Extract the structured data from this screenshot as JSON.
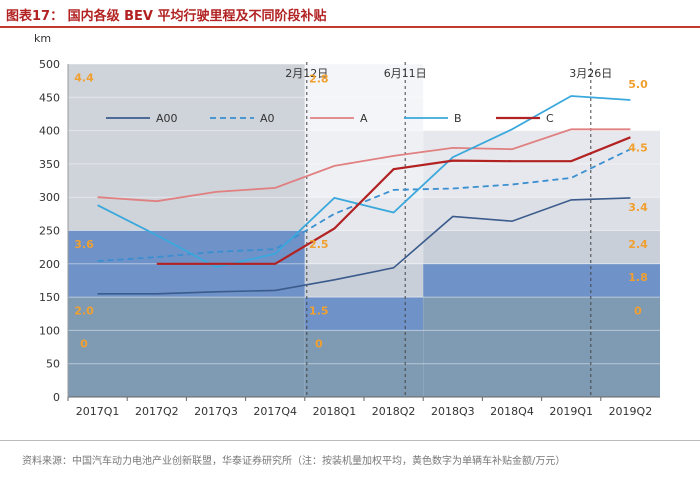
{
  "title": "图表17：  国内各级 BEV 平均行驶里程及不同阶段补贴",
  "source": "资料来源：中国汽车动力电池产业创新联盟，华泰证券研究所（注：按装机量加权平均，黄色数字为单辆车补贴金额/万元）",
  "chart_data": {
    "type": "line",
    "title": "国内各级 BEV 平均行驶里程及不同阶段补贴",
    "ylabel": "km",
    "xlabel": "",
    "ylim": [
      0,
      500
    ],
    "yticks": [
      0,
      50,
      100,
      150,
      200,
      250,
      300,
      350,
      400,
      450,
      500
    ],
    "categories": [
      "2017Q1",
      "2017Q2",
      "2017Q3",
      "2017Q4",
      "2018Q1",
      "2018Q2",
      "2018Q3",
      "2018Q4",
      "2019Q1",
      "2019Q2"
    ],
    "series": [
      {
        "name": "A00",
        "color": "#3b5b8c",
        "dash": false,
        "values": [
          155,
          155,
          158,
          160,
          176,
          194,
          271,
          264,
          296,
          299
        ]
      },
      {
        "name": "A0",
        "color": "#3a8fd0",
        "dash": true,
        "values": [
          204,
          210,
          218,
          222,
          275,
          311,
          313,
          319,
          329,
          372
        ]
      },
      {
        "name": "A",
        "color": "#e08080",
        "dash": false,
        "values": [
          300,
          294,
          308,
          314,
          347,
          362,
          374,
          372,
          402,
          402
        ]
      },
      {
        "name": "B",
        "color": "#3aa8dc",
        "dash": false,
        "values": [
          288,
          243,
          195,
          215,
          299,
          277,
          360,
          402,
          452,
          446
        ]
      },
      {
        "name": "C",
        "color": "#b22222",
        "dash": false,
        "values": [
          null,
          200,
          200,
          200,
          253,
          342,
          355,
          354,
          354,
          390
        ]
      }
    ],
    "subsidy_periods": [
      {
        "from_index": 0,
        "to_index": 4,
        "bands": [
          {
            "from": 0,
            "to": 150
          },
          {
            "from": 150,
            "to": 250
          },
          {
            "from": 250,
            "to": 500
          }
        ]
      },
      {
        "from_index": 4,
        "to_index": 6,
        "bands": [
          {
            "from": 0,
            "to": 100
          },
          {
            "from": 100,
            "to": 150
          },
          {
            "from": 150,
            "to": 200
          },
          {
            "from": 200,
            "to": 250
          },
          {
            "from": 250,
            "to": 300
          },
          {
            "from": 300,
            "to": 400
          },
          {
            "from": 400,
            "to": 500
          }
        ]
      },
      {
        "from_index": 6,
        "to_index": 9,
        "bands": [
          {
            "from": 0,
            "to": 150
          },
          {
            "from": 150,
            "to": 200
          },
          {
            "from": 200,
            "to": 250
          },
          {
            "from": 250,
            "to": 300
          },
          {
            "from": 300,
            "to": 400
          }
        ]
      }
    ],
    "annotations": [
      {
        "text": "4.4",
        "x_index": 0,
        "y": 480
      },
      {
        "text": "3.6",
        "x_index": 0,
        "y": 230
      },
      {
        "text": "2.0",
        "x_index": 0,
        "y": 130
      },
      {
        "text": "0",
        "x_index": 0,
        "y": 80
      },
      {
        "text": "2.8",
        "x_index": 4.2,
        "y": 478
      },
      {
        "text": "2.5",
        "x_index": 4.2,
        "y": 230
      },
      {
        "text": "1.5",
        "x_index": 4.2,
        "y": 130
      },
      {
        "text": "0",
        "x_index": 4.2,
        "y": 80
      },
      {
        "text": "5.0",
        "x_index": 9.3,
        "y": 470
      },
      {
        "text": "4.5",
        "x_index": 9.3,
        "y": 375
      },
      {
        "text": "3.4",
        "x_index": 9.3,
        "y": 285
      },
      {
        "text": "2.4",
        "x_index": 9.3,
        "y": 230
      },
      {
        "text": "1.8",
        "x_index": 9.3,
        "y": 180
      },
      {
        "text": "0",
        "x_index": 9.3,
        "y": 130
      }
    ],
    "date_markers": [
      {
        "label": "2月12日",
        "x_index": 4
      },
      {
        "label": "6月11日",
        "x_index": 5.5
      },
      {
        "label": "3月26日",
        "x_index": 8.8
      }
    ],
    "legend": [
      "A00",
      "A0",
      "A",
      "B",
      "C"
    ],
    "legend_position": "top"
  }
}
